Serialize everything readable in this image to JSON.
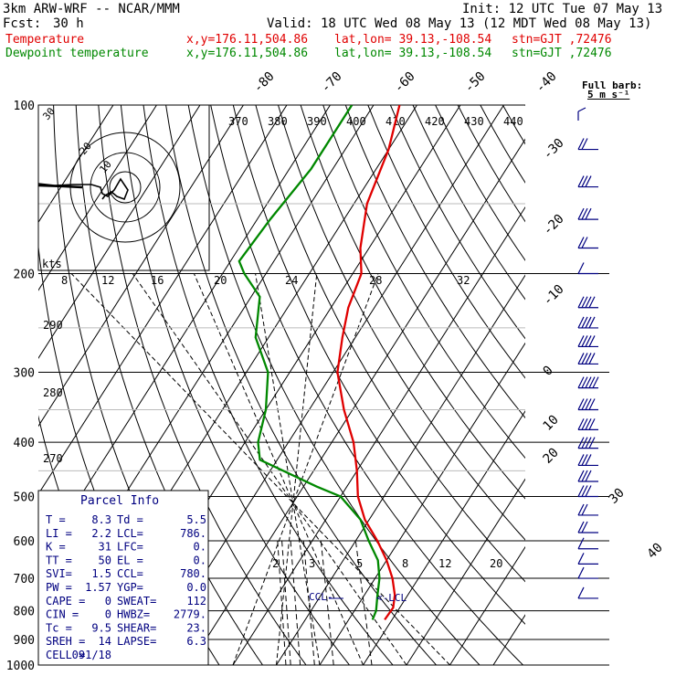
{
  "header": {
    "model": "3km ARW-WRF -- NCAR/MMM",
    "init": "Init: 12 UTC Tue 07 May 13",
    "fcst_label": "Fcst:",
    "fcst_value": "30 h",
    "valid": "Valid: 18 UTC Wed 08 May 13 (12 MDT Wed 08 May 13)",
    "lines": [
      {
        "name": "Temperature",
        "xy": "x,y=176.11,504.86",
        "latlon": "lat,lon= 39.13,-108.54",
        "stn": "stn=GJT ,72476",
        "color": "#e00000"
      },
      {
        "name": "Dewpoint temperature",
        "xy": "x,y=176.11,504.86",
        "latlon": "lat,lon= 39.13,-108.54",
        "stn": "stn=GJT ,72476",
        "color": "#008800"
      }
    ]
  },
  "barb_legend": {
    "title": "Full barb:",
    "value": "5 m s⁻¹"
  },
  "hodograph": {
    "units": "kts",
    "ring_labels": [
      "30",
      "20",
      "10"
    ]
  },
  "parcel_info": {
    "title": "Parcel Info",
    "rows": [
      {
        "k1": "T  =",
        "v1": "8.3",
        "k2": "Td =",
        "v2": "5.5"
      },
      {
        "k1": "LI =",
        "v1": "2.2",
        "k2": "LCL=",
        "v2": "786."
      },
      {
        "k1": "K  =",
        "v1": "31",
        "k2": "LFC=",
        "v2": "0."
      },
      {
        "k1": "TT =",
        "v1": "50",
        "k2": "EL =",
        "v2": "0."
      },
      {
        "k1": "SVI=",
        "v1": "1.5",
        "k2": "CCL=",
        "v2": "780."
      },
      {
        "k1": "PW =",
        "v1": "1.57",
        "k2": "YGP=",
        "v2": "0.0"
      },
      {
        "k1": "CAPE =",
        "v1": "0",
        "k2": "SWEAT=",
        "v2": "112"
      },
      {
        "k1": "CIN =",
        "v1": "0",
        "k2": "HWBZ=",
        "v2": "2779."
      },
      {
        "k1": "Tc =",
        "v1": "9.5",
        "k2": "SHEAR=",
        "v2": "23."
      },
      {
        "k1": "SREH =",
        "v1": "14",
        "k2": "LAPSE=",
        "v2": "6.3"
      },
      {
        "k1": "CELL =",
        "v1": "091/18",
        "k2": "",
        "v2": ""
      }
    ]
  },
  "colors": {
    "temperature": "#e00000",
    "dewpoint": "#008800",
    "wind": "#000080",
    "grid": "#000000"
  },
  "chart_data": {
    "type": "line",
    "title": "",
    "xlabel": "",
    "ylabel": "",
    "y_scale": "log",
    "ylim": [
      1000,
      100
    ],
    "pressure_levels": [
      100,
      200,
      300,
      400,
      500,
      600,
      700,
      800,
      900,
      1000
    ],
    "isotherms": [
      -80,
      -70,
      -60,
      -50,
      -40,
      -30,
      -20,
      -10,
      0,
      10,
      20,
      30,
      40
    ],
    "theta_labels": [
      370,
      380,
      390,
      400,
      410,
      420,
      430,
      440
    ],
    "mixing_ratio_upper": [
      8,
      12,
      16,
      20,
      24,
      28,
      32
    ],
    "mixing_ratio_lower": [
      2,
      3,
      5,
      8,
      12,
      20
    ],
    "dry_adiabat_labels": [
      290,
      280,
      270
    ],
    "annotations": [
      "CCL",
      "LCL"
    ],
    "series": [
      {
        "name": "Temperature",
        "color": "#e00000",
        "p": [
          100,
          120,
          150,
          180,
          200,
          230,
          260,
          300,
          350,
          400,
          450,
          500,
          550,
          600,
          650,
          700,
          750,
          790,
          830
        ],
        "t": [
          -64,
          -60,
          -57,
          -52,
          -48,
          -46,
          -43,
          -39,
          -32,
          -25,
          -20,
          -16,
          -11,
          -5,
          0,
          4,
          7,
          8.5,
          8.3
        ]
      },
      {
        "name": "Dewpoint temperature",
        "color": "#008800",
        "p": [
          100,
          130,
          160,
          190,
          200,
          220,
          260,
          300,
          350,
          400,
          430,
          480,
          500,
          550,
          600,
          650,
          700,
          750,
          800,
          830
        ],
        "t": [
          -75,
          -75,
          -77,
          -78,
          -75,
          -68,
          -63,
          -55,
          -50,
          -47,
          -44,
          -27,
          -20,
          -12,
          -7,
          -2,
          1,
          3,
          5,
          5.5
        ]
      }
    ],
    "wind_barbs": [
      {
        "p": 120,
        "speed_ms": 10
      },
      {
        "p": 140,
        "speed_ms": 15
      },
      {
        "p": 160,
        "speed_ms": 15
      },
      {
        "p": 180,
        "speed_ms": 10
      },
      {
        "p": 200,
        "speed_ms": 5
      },
      {
        "p": 230,
        "speed_ms": 20
      },
      {
        "p": 250,
        "speed_ms": 20
      },
      {
        "p": 270,
        "speed_ms": 20
      },
      {
        "p": 290,
        "speed_ms": 20
      },
      {
        "p": 320,
        "speed_ms": 25
      },
      {
        "p": 350,
        "speed_ms": 20
      },
      {
        "p": 380,
        "speed_ms": 20
      },
      {
        "p": 410,
        "speed_ms": 20
      },
      {
        "p": 440,
        "speed_ms": 15
      },
      {
        "p": 470,
        "speed_ms": 15
      },
      {
        "p": 500,
        "speed_ms": 15
      },
      {
        "p": 540,
        "speed_ms": 10
      },
      {
        "p": 580,
        "speed_ms": 10
      },
      {
        "p": 620,
        "speed_ms": 5
      },
      {
        "p": 660,
        "speed_ms": 5
      },
      {
        "p": 700,
        "speed_ms": 5
      },
      {
        "p": 760,
        "speed_ms": 5
      }
    ]
  }
}
